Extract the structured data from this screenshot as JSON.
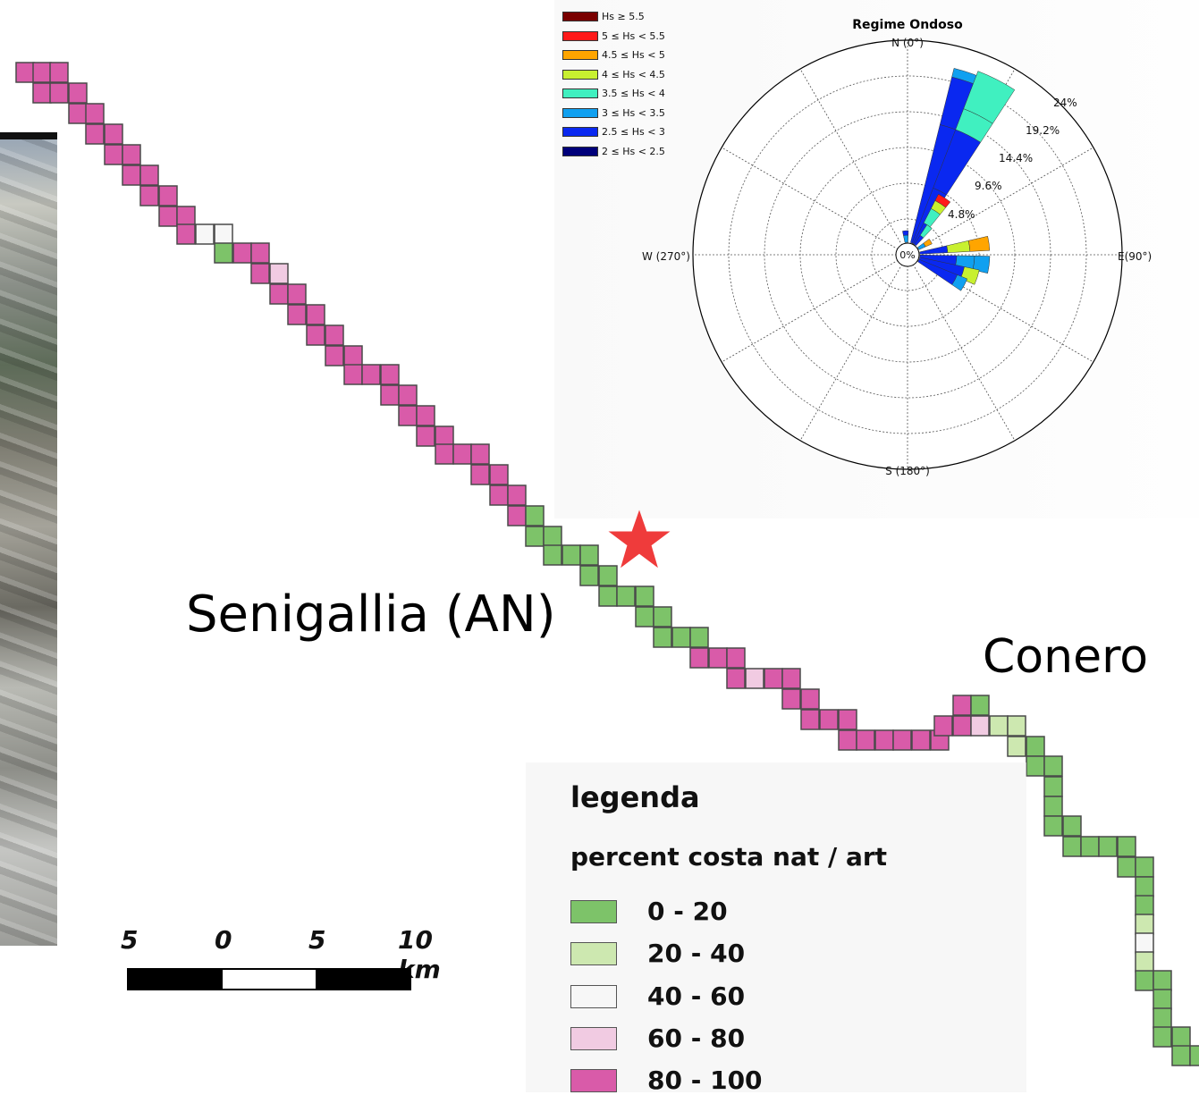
{
  "map": {
    "places": {
      "senigallia": "Senigallia (AN)",
      "conero": "Conero"
    },
    "scale_bar": {
      "labels": [
        "5",
        "0",
        "5",
        "10 km"
      ]
    },
    "legend": {
      "title": "legenda",
      "subtitle": "percent costa nat / art",
      "items": [
        {
          "label": "0 - 20",
          "color": "#7dc369"
        },
        {
          "label": "20 - 40",
          "color": "#cde8b0"
        },
        {
          "label": "40 - 60",
          "color": "#f7f7f7"
        },
        {
          "label": "60 - 80",
          "color": "#f1cbe2"
        },
        {
          "label": "80 - 100",
          "color": "#d95ba9"
        }
      ]
    },
    "marker": {
      "type": "star",
      "color": "#ef3b3b"
    }
  },
  "wave_rose": {
    "title": "Regime Ondoso",
    "directions": {
      "n": "N (0°)",
      "e": "E(90°)",
      "s": "S (180°)",
      "w": "W (270°)"
    },
    "center_label": "0%",
    "ring_labels": [
      "4.8%",
      "9.6%",
      "14.4%",
      "19.2%",
      "24%"
    ],
    "hs_classes": [
      {
        "label": "Hs ≥ 5.5",
        "color": "#7a0000"
      },
      {
        "label": "5 ≤ Hs < 5.5",
        "color": "#ff1a1a"
      },
      {
        "label": "4.5 ≤ Hs < 5",
        "color": "#ffa500"
      },
      {
        "label": "4 ≤ Hs < 4.5",
        "color": "#c8f030"
      },
      {
        "label": "3.5 ≤ Hs < 4",
        "color": "#40f0c0"
      },
      {
        "label": "3 ≤ Hs < 3.5",
        "color": "#10a0f0"
      },
      {
        "label": "2.5 ≤ Hs < 3",
        "color": "#0a28f0"
      },
      {
        "label": "2 ≤ Hs < 2.5",
        "color": "#00007a"
      }
    ]
  }
}
